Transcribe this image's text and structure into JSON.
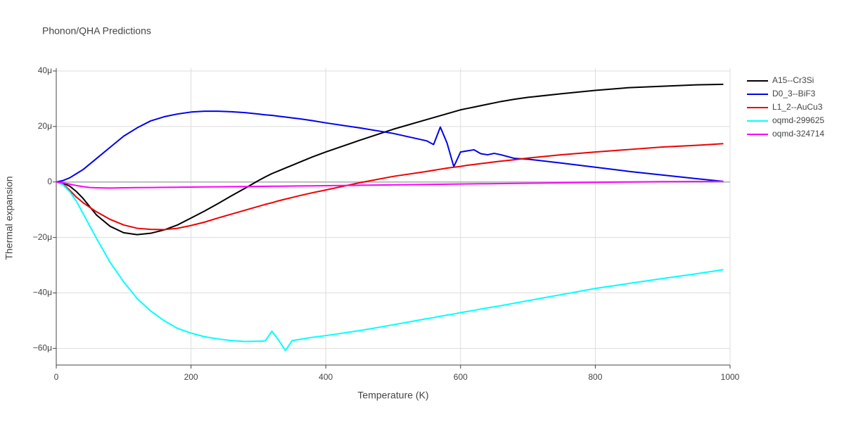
{
  "chart_data": {
    "type": "line",
    "title": "Phonon/QHA Predictions",
    "x_label": "Temperature (K)",
    "y_label": "Thermal expansion",
    "xlim": [
      0,
      1000
    ],
    "xticks": [
      0,
      200,
      400,
      600,
      800,
      1000
    ],
    "ylim": [
      -6.6e-05,
      4.1e-05
    ],
    "yticks": [
      {
        "value": -6e-05,
        "label": "−60μ"
      },
      {
        "value": -4e-05,
        "label": "−40μ"
      },
      {
        "value": -2e-05,
        "label": "−20μ"
      },
      {
        "value": 0,
        "label": "0"
      },
      {
        "value": 2e-05,
        "label": "20μ"
      },
      {
        "value": 4e-05,
        "label": "40μ"
      }
    ],
    "grid": true,
    "legend": "top-right",
    "x": [
      0,
      10,
      20,
      30,
      40,
      50,
      60,
      80,
      100,
      120,
      140,
      160,
      180,
      200,
      220,
      240,
      260,
      280,
      300,
      310,
      320,
      330,
      340,
      350,
      360,
      380,
      400,
      450,
      500,
      550,
      560,
      570,
      580,
      590,
      600,
      610,
      620,
      630,
      640,
      650,
      660,
      680,
      700,
      750,
      800,
      850,
      900,
      950,
      990
    ],
    "series": [
      {
        "name": "A15--Cr3Si",
        "color": "#000000",
        "values": [
          0,
          -5e-07,
          -1.5e-06,
          -3.5e-06,
          -6e-06,
          -9e-06,
          -1.2e-05,
          -1.6e-05,
          -1.83e-05,
          -1.9e-05,
          -1.85e-05,
          -1.73e-05,
          -1.55e-05,
          -1.3e-05,
          -1.05e-05,
          -7.8e-06,
          -5e-06,
          -2.3e-06,
          5e-07,
          1.8e-06,
          3e-06,
          4e-06,
          5e-06,
          6e-06,
          7e-06,
          9e-06,
          1.08e-05,
          1.5e-05,
          1.9e-05,
          2.25e-05,
          2.32e-05,
          2.39e-05,
          2.46e-05,
          2.53e-05,
          2.6e-05,
          2.65e-05,
          2.7e-05,
          2.75e-05,
          2.8e-05,
          2.85e-05,
          2.9e-05,
          2.98e-05,
          3.05e-05,
          3.18e-05,
          3.3e-05,
          3.4e-05,
          3.45e-05,
          3.5e-05,
          3.52e-05
        ]
      },
      {
        "name": "D0_3--BiF3",
        "color": "#0000ee",
        "values": [
          0,
          5e-07,
          1.5e-06,
          3e-06,
          4.5e-06,
          6.5e-06,
          8.5e-06,
          1.25e-05,
          1.65e-05,
          1.95e-05,
          2.2e-05,
          2.35e-05,
          2.45e-05,
          2.52e-05,
          2.55e-05,
          2.55e-05,
          2.53e-05,
          2.5e-05,
          2.45e-05,
          2.42e-05,
          2.4e-05,
          2.37e-05,
          2.34e-05,
          2.31e-05,
          2.28e-05,
          2.21e-05,
          2.13e-05,
          1.95e-05,
          1.75e-05,
          1.48e-05,
          1.35e-05,
          1.98e-05,
          1.4e-05,
          5.5e-06,
          1.08e-05,
          1.12e-05,
          1.16e-05,
          1.02e-05,
          9.8e-06,
          1.03e-05,
          9.8e-06,
          8.5e-06,
          8.2e-06,
          6.8e-06,
          5.3e-06,
          3.8e-06,
          2.5e-06,
          1.2e-06,
          2e-07
        ]
      },
      {
        "name": "L1_2--AuCu3",
        "color": "#ee0000",
        "values": [
          0,
          -8e-07,
          -3e-06,
          -5.5e-06,
          -7.5e-06,
          -9.2e-06,
          -1.08e-05,
          -1.35e-05,
          -1.55e-05,
          -1.67e-05,
          -1.71e-05,
          -1.72e-05,
          -1.67e-05,
          -1.57e-05,
          -1.45e-05,
          -1.3e-05,
          -1.16e-05,
          -1.02e-05,
          -8.8e-06,
          -8.1e-06,
          -7.5e-06,
          -6.8e-06,
          -6.2e-06,
          -5.6e-06,
          -5e-06,
          -3.9e-06,
          -2.9e-06,
          -3e-07,
          2e-06,
          3.8e-06,
          4.2e-06,
          4.6e-06,
          5e-06,
          5.3e-06,
          5.6e-06,
          6e-06,
          6.3e-06,
          6.6e-06,
          6.9e-06,
          7.2e-06,
          7.5e-06,
          8e-06,
          8.6e-06,
          9.8e-06,
          1.08e-05,
          1.17e-05,
          1.26e-05,
          1.32e-05,
          1.38e-05
        ]
      },
      {
        "name": "oqmd-299625",
        "color": "#00ffff",
        "values": [
          0,
          -1e-06,
          -3.5e-06,
          -7e-06,
          -1.15e-05,
          -1.6e-05,
          -2.05e-05,
          -2.9e-05,
          -3.6e-05,
          -4.2e-05,
          -4.65e-05,
          -5e-05,
          -5.28e-05,
          -5.45e-05,
          -5.58e-05,
          -5.66e-05,
          -5.72e-05,
          -5.75e-05,
          -5.74e-05,
          -5.73e-05,
          -5.38e-05,
          -5.7e-05,
          -6.08e-05,
          -5.72e-05,
          -5.68e-05,
          -5.6e-05,
          -5.54e-05,
          -5.36e-05,
          -5.15e-05,
          -4.93e-05,
          -4.89e-05,
          -4.84e-05,
          -4.8e-05,
          -4.76e-05,
          -4.71e-05,
          -4.67e-05,
          -4.63e-05,
          -4.58e-05,
          -4.54e-05,
          -4.5e-05,
          -4.46e-05,
          -4.37e-05,
          -4.28e-05,
          -4.06e-05,
          -3.84e-05,
          -3.66e-05,
          -3.48e-05,
          -3.31e-05,
          -3.16e-05
        ]
      },
      {
        "name": "oqmd-324714",
        "color": "#ff00ff",
        "values": [
          0,
          -3e-07,
          -8e-07,
          -1.3e-06,
          -1.7e-06,
          -2e-06,
          -2.1e-06,
          -2.2e-06,
          -2.1e-06,
          -2.05e-06,
          -2e-06,
          -1.95e-06,
          -1.9e-06,
          -1.85e-06,
          -1.8e-06,
          -1.75e-06,
          -1.7e-06,
          -1.65e-06,
          -1.6e-06,
          -1.58e-06,
          -1.55e-06,
          -1.53e-06,
          -1.5e-06,
          -1.48e-06,
          -1.45e-06,
          -1.4e-06,
          -1.35e-06,
          -1.2e-06,
          -1.05e-06,
          -9e-07,
          -8.7e-07,
          -8.4e-07,
          -8.1e-07,
          -7.8e-07,
          -7.5e-07,
          -7.2e-07,
          -6.9e-07,
          -6.6e-07,
          -6.3e-07,
          -6e-07,
          -5.7e-07,
          -5.1e-07,
          -4.5e-07,
          -3e-07,
          -1.5e-07,
          0,
          1e-07,
          1.5e-07,
          2e-07
        ]
      }
    ]
  }
}
